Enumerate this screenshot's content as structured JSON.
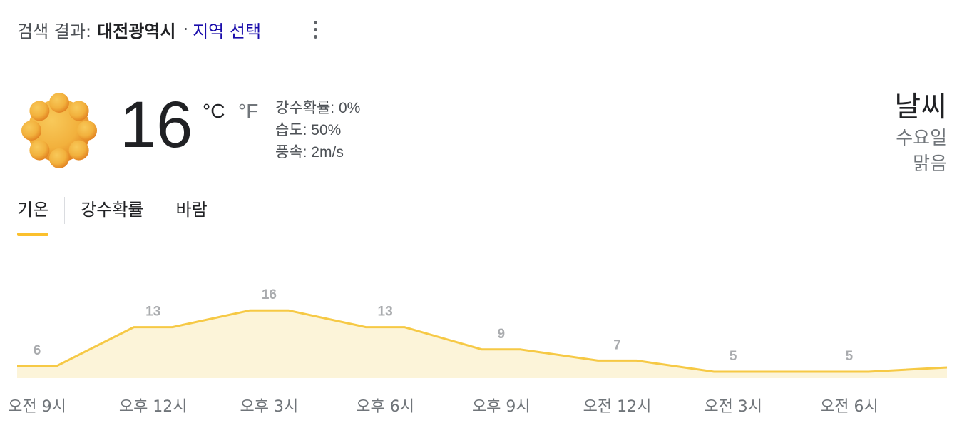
{
  "header": {
    "prefix": "검색 결과:",
    "city": "대전광역시",
    "separator": "·",
    "region_link": "지역 선택"
  },
  "current": {
    "icon": "sunny-icon",
    "temperature": "16",
    "unit_c": "°C",
    "unit_f": "°F",
    "precipitation": "강수확률: 0%",
    "humidity": "습도: 50%",
    "wind": "풍속: 2m/s"
  },
  "summary": {
    "title": "날씨",
    "day": "수요일",
    "condition": "맑음"
  },
  "tabs": [
    {
      "label": "기온",
      "active": true
    },
    {
      "label": "강수확률",
      "active": false
    },
    {
      "label": "바람",
      "active": false
    }
  ],
  "colors": {
    "accent": "#fbc02d",
    "line": "#f6c945",
    "fill": "#fcf4d9",
    "link": "#1a0dab"
  },
  "chart_data": {
    "type": "area",
    "x": [
      "오전 9시",
      "오후 12시",
      "오후 3시",
      "오후 6시",
      "오후 9시",
      "오전 12시",
      "오전 3시",
      "오전 6시"
    ],
    "values": [
      6,
      13,
      16,
      13,
      9,
      7,
      5,
      5
    ],
    "labeled_values": [
      "6",
      "13",
      "16",
      "13",
      "9",
      "7",
      "5",
      "5"
    ],
    "ylabel": "",
    "grid": false
  }
}
